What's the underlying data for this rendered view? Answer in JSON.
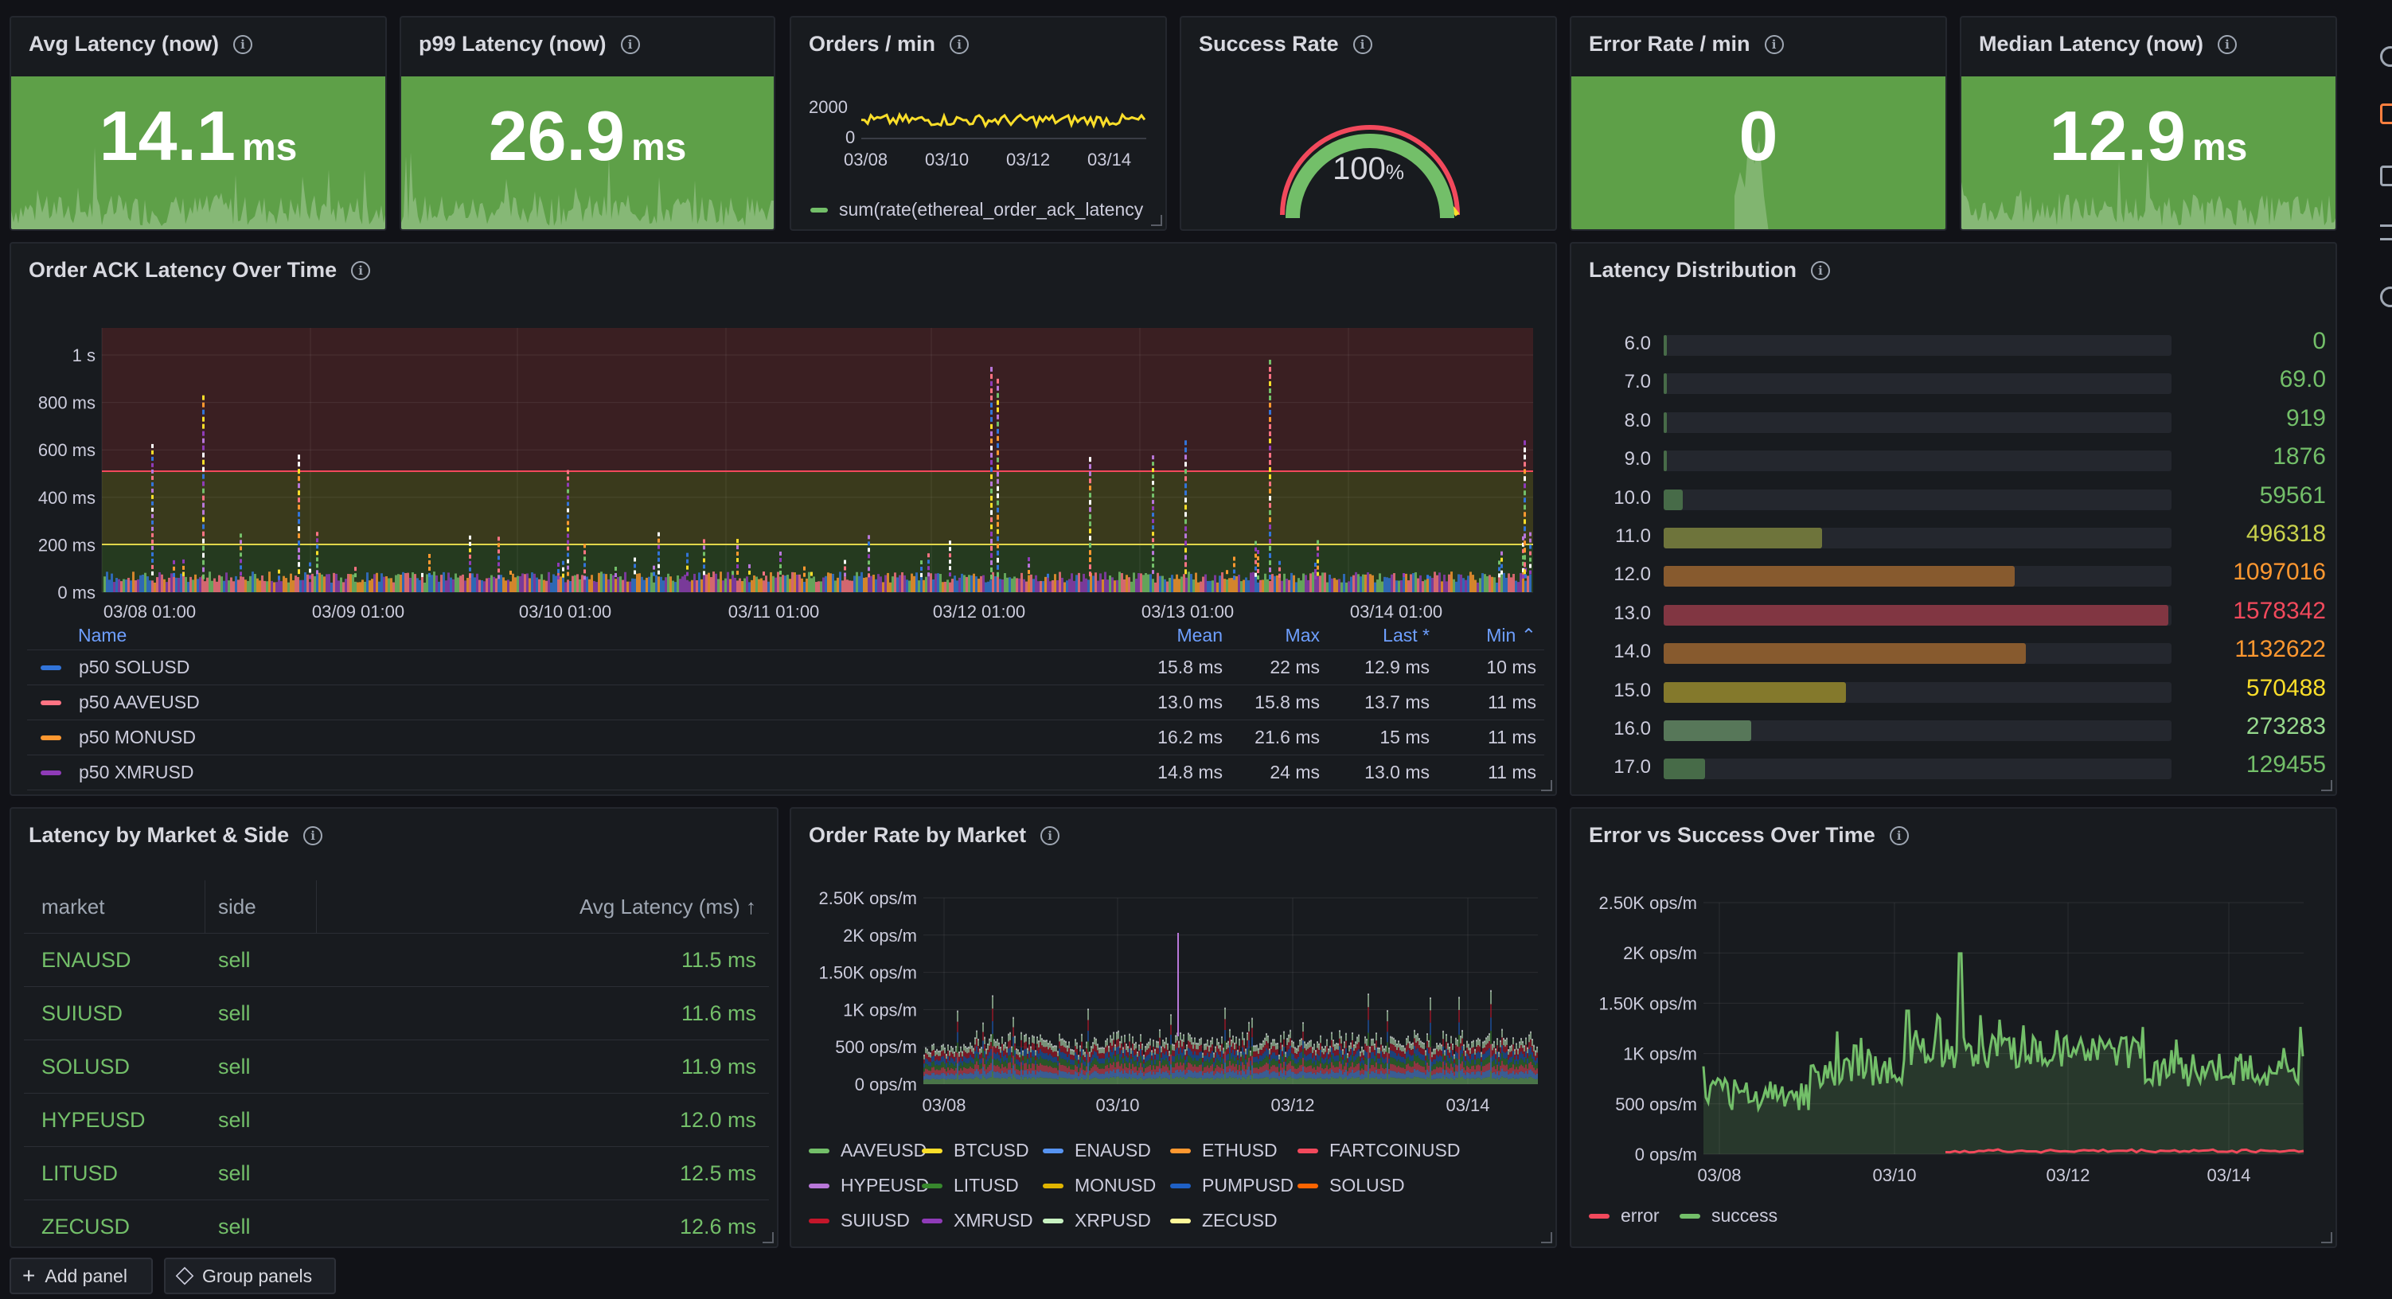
{
  "stats": {
    "avg": {
      "title": "Avg Latency (now)",
      "value": "14.1",
      "unit": "ms"
    },
    "p99": {
      "title": "p99 Latency (now)",
      "value": "26.9",
      "unit": "ms"
    },
    "orders": {
      "title": "Orders / min",
      "y_ticks": [
        "2000",
        "0"
      ],
      "x_ticks": [
        "03/08",
        "03/10",
        "03/12",
        "03/14"
      ],
      "legend": "sum(rate(ethereal_order_ack_latency"
    },
    "success": {
      "title": "Success Rate",
      "value": "100",
      "unit": "%"
    },
    "error": {
      "title": "Error Rate / min",
      "value": "0",
      "unit": ""
    },
    "median": {
      "title": "Median Latency (now)",
      "value": "12.9",
      "unit": "ms"
    }
  },
  "ack": {
    "title": "Order ACK Latency Over Time",
    "y_ticks": [
      "1 s",
      "800 ms",
      "600 ms",
      "400 ms",
      "200 ms",
      "0 ms"
    ],
    "x_ticks": [
      "03/08 01:00",
      "03/09 01:00",
      "03/10 01:00",
      "03/11 01:00",
      "03/12 01:00",
      "03/13 01:00",
      "03/14 01:00"
    ],
    "legend_headers": {
      "name": "Name",
      "mean": "Mean",
      "max": "Max",
      "last": "Last *",
      "min": "Min"
    },
    "legend_rows": [
      {
        "name": "p50 SOLUSD",
        "color": "#3274d9",
        "mean": "15.8 ms",
        "max": "22 ms",
        "last": "12.9 ms",
        "min": "10 ms"
      },
      {
        "name": "p50 AAVEUSD",
        "color": "#ff7383",
        "mean": "13.0 ms",
        "max": "15.8 ms",
        "last": "13.7 ms",
        "min": "11 ms"
      },
      {
        "name": "p50 MONUSD",
        "color": "#ff9830",
        "mean": "16.2 ms",
        "max": "21.6 ms",
        "last": "15 ms",
        "min": "11 ms"
      },
      {
        "name": "p50 XMRUSD",
        "color": "#8f3bb8",
        "mean": "14.8 ms",
        "max": "24 ms",
        "last": "13.0 ms",
        "min": "11 ms"
      }
    ]
  },
  "dist": {
    "title": "Latency Distribution",
    "max": 1578342,
    "rows": [
      {
        "label": "6.0",
        "value": 0,
        "text": "0",
        "color": "#73bf69"
      },
      {
        "label": "7.0",
        "value": 69,
        "text": "69.0",
        "color": "#73bf69"
      },
      {
        "label": "8.0",
        "value": 919,
        "text": "919",
        "color": "#73bf69"
      },
      {
        "label": "9.0",
        "value": 1876,
        "text": "1876",
        "color": "#73bf69"
      },
      {
        "label": "10.0",
        "value": 59561,
        "text": "59561",
        "color": "#73bf69"
      },
      {
        "label": "11.0",
        "value": 496318,
        "text": "496318",
        "color": "#c8d14b"
      },
      {
        "label": "12.0",
        "value": 1097016,
        "text": "1097016",
        "color": "#ff9830"
      },
      {
        "label": "13.0",
        "value": 1578342,
        "text": "1578342",
        "color": "#f2495c"
      },
      {
        "label": "14.0",
        "value": 1132622,
        "text": "1132622",
        "color": "#ff9830"
      },
      {
        "label": "15.0",
        "value": 570488,
        "text": "570488",
        "color": "#fade2a"
      },
      {
        "label": "16.0",
        "value": 273283,
        "text": "273283",
        "color": "#96d98d"
      },
      {
        "label": "17.0",
        "value": 129455,
        "text": "129455",
        "color": "#73bf69"
      }
    ]
  },
  "market_table": {
    "title": "Latency by Market & Side",
    "headers": {
      "market": "market",
      "side": "side",
      "avg": "Avg Latency (ms)"
    },
    "rows": [
      {
        "market": "ENAUSD",
        "side": "sell",
        "avg": "11.5 ms"
      },
      {
        "market": "SUIUSD",
        "side": "sell",
        "avg": "11.6 ms"
      },
      {
        "market": "SOLUSD",
        "side": "sell",
        "avg": "11.9 ms"
      },
      {
        "market": "HYPEUSD",
        "side": "sell",
        "avg": "12.0 ms"
      },
      {
        "market": "LITUSD",
        "side": "sell",
        "avg": "12.5 ms"
      },
      {
        "market": "ZECUSD",
        "side": "sell",
        "avg": "12.6 ms"
      }
    ]
  },
  "rate": {
    "title": "Order Rate by Market",
    "y_ticks": [
      "2.50K ops/m",
      "2K ops/m",
      "1.50K ops/m",
      "1K ops/m",
      "500 ops/m",
      "0 ops/m"
    ],
    "x_ticks": [
      "03/08",
      "03/10",
      "03/12",
      "03/14"
    ],
    "legend": [
      {
        "name": "AAVEUSD",
        "color": "#73bf69"
      },
      {
        "name": "BTCUSD",
        "color": "#fade2a"
      },
      {
        "name": "ENAUSD",
        "color": "#5794f2"
      },
      {
        "name": "ETHUSD",
        "color": "#ff9830"
      },
      {
        "name": "FARTCOINUSD",
        "color": "#f2495c"
      },
      {
        "name": "HYPEUSD",
        "color": "#b877d9"
      },
      {
        "name": "LITUSD",
        "color": "#37872d"
      },
      {
        "name": "MONUSD",
        "color": "#e0b400"
      },
      {
        "name": "PUMPUSD",
        "color": "#1f60c4"
      },
      {
        "name": "SOLUSD",
        "color": "#fa6400"
      },
      {
        "name": "SUIUSD",
        "color": "#c4162a"
      },
      {
        "name": "XMRUSD",
        "color": "#8f3bb8"
      },
      {
        "name": "XRPUSD",
        "color": "#c8f2c2"
      },
      {
        "name": "ZECUSD",
        "color": "#fff899"
      }
    ]
  },
  "errsucc": {
    "title": "Error vs Success Over Time",
    "y_ticks": [
      "2.50K ops/m",
      "2K ops/m",
      "1.50K ops/m",
      "1K ops/m",
      "500 ops/m",
      "0 ops/m"
    ],
    "x_ticks": [
      "03/08",
      "03/10",
      "03/12",
      "03/14"
    ],
    "legend": [
      {
        "name": "error",
        "color": "#f2495c"
      },
      {
        "name": "success",
        "color": "#73bf69"
      }
    ]
  },
  "toolbar": {
    "add_panel": "Add panel",
    "group_panels": "Group panels"
  },
  "colors": {
    "stat_green": "#5ea048",
    "threshold_red": "#f2495c",
    "threshold_yellow": "#e0d64b"
  }
}
